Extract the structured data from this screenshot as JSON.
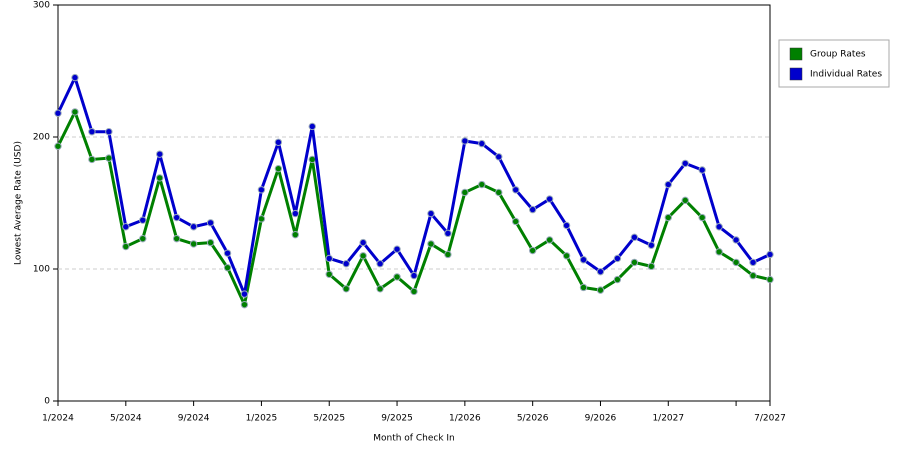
{
  "chart_data": {
    "type": "line",
    "x_label": "Month of Check In",
    "y_label": "Lowest Average Rate (USD)",
    "categories": [
      "1/2024",
      null,
      null,
      null,
      "5/2024",
      null,
      null,
      null,
      "9/2024",
      null,
      null,
      null,
      "1/2025",
      null,
      null,
      null,
      "5/2025",
      null,
      null,
      null,
      "9/2025",
      null,
      null,
      null,
      "1/2026",
      null,
      null,
      null,
      "5/2026",
      null,
      null,
      null,
      "9/2026",
      null,
      null,
      null,
      "1/2027",
      null,
      null,
      null,
      null,
      null,
      "7/2027"
    ],
    "series": [
      {
        "name": "Group Rates",
        "color": "#008000",
        "values": [
          193,
          219,
          183,
          184,
          117,
          123,
          169,
          123,
          119,
          120,
          101,
          73,
          138,
          176,
          126,
          183,
          96,
          85,
          110,
          85,
          94,
          83,
          119,
          111,
          158,
          164,
          158,
          136,
          114,
          122,
          110,
          86,
          84,
          92,
          105,
          102,
          139,
          152,
          139,
          113,
          105,
          95,
          92
        ]
      },
      {
        "name": "Individual Rates",
        "color": "#0000cc",
        "values": [
          218,
          245,
          204,
          204,
          132,
          137,
          187,
          139,
          132,
          135,
          112,
          81,
          160,
          196,
          142,
          208,
          108,
          104,
          120,
          104,
          115,
          95,
          142,
          127,
          197,
          195,
          185,
          160,
          145,
          153,
          133,
          107,
          98,
          108,
          124,
          118,
          164,
          180,
          175,
          132,
          122,
          105,
          111
        ]
      }
    ],
    "ylim": [
      0,
      300
    ],
    "yticks": [
      0,
      100,
      200,
      300
    ],
    "grid": true,
    "legend": "right"
  }
}
